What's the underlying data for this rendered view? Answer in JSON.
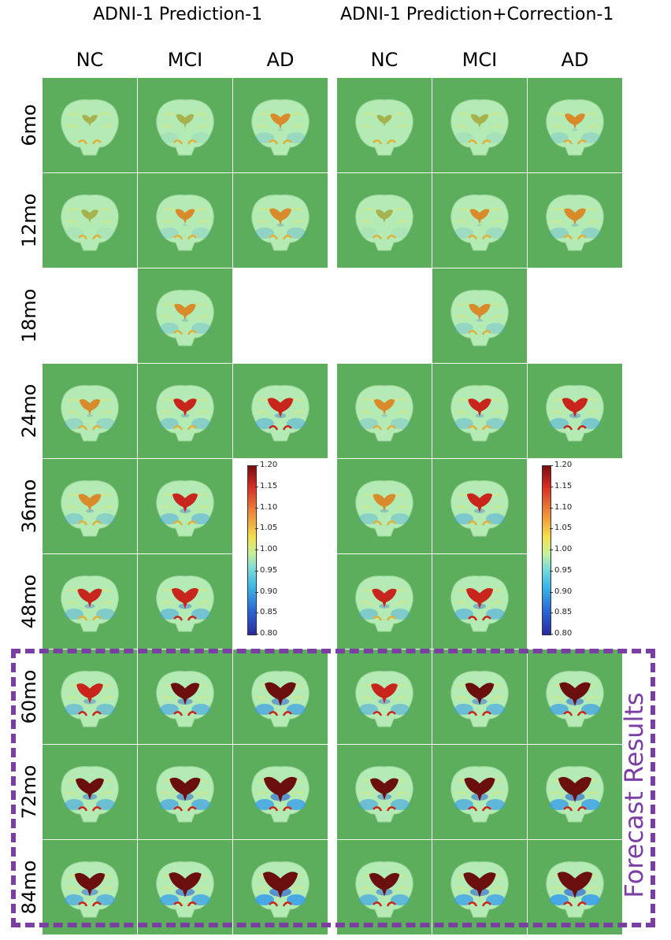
{
  "panels": [
    {
      "title": "ADNI-1 Prediction-1",
      "columns": [
        "NC",
        "MCI",
        "AD"
      ]
    },
    {
      "title": "ADNI-1 Prediction+Correction-1",
      "columns": [
        "NC",
        "MCI",
        "AD"
      ]
    }
  ],
  "rows": [
    "6mo",
    "12mo",
    "18mo",
    "24mo",
    "36mo",
    "48mo",
    "60mo",
    "72mo",
    "84mo"
  ],
  "availability": [
    [
      1,
      1,
      1,
      1,
      1,
      1
    ],
    [
      1,
      1,
      1,
      1,
      1,
      1
    ],
    [
      0,
      1,
      0,
      0,
      1,
      0
    ],
    [
      1,
      1,
      1,
      1,
      1,
      1
    ],
    [
      1,
      1,
      0,
      1,
      1,
      0
    ],
    [
      1,
      1,
      0,
      1,
      1,
      0
    ],
    [
      1,
      1,
      1,
      1,
      1,
      1
    ],
    [
      1,
      1,
      1,
      1,
      1,
      1
    ],
    [
      1,
      1,
      1,
      1,
      1,
      1
    ]
  ],
  "colorbar": {
    "min": 0.8,
    "max": 1.2,
    "ticks": [
      "1.20",
      "1.15",
      "1.10",
      "1.05",
      "1.00",
      "0.95",
      "0.90",
      "0.85",
      "0.80"
    ]
  },
  "forecast": {
    "label": "Forecast Results",
    "color": "#7b3fa3"
  },
  "colors": {
    "background": "#5cae5c",
    "brain": "#b4eab4",
    "ventricle_low": "#9ab04a",
    "ventricle_high": "#6a0e0e"
  }
}
